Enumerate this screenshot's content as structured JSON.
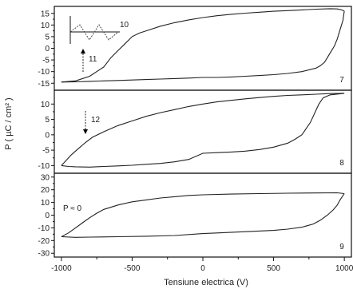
{
  "chart_data": [
    {
      "type": "line",
      "panel_label": "7",
      "xlim": [
        -1050,
        1050
      ],
      "ylim": [
        -18,
        18
      ],
      "yticks": [
        15,
        10,
        5,
        0,
        -5,
        -10,
        -15
      ],
      "annotations": [
        {
          "text": "10",
          "kind": "waveform-inset"
        },
        {
          "text": "11",
          "kind": "arrow-up"
        }
      ],
      "series": [
        {
          "upper": [
            [
              -1000,
              -14.5
            ],
            [
              -900,
              -14
            ],
            [
              -800,
              -12
            ],
            [
              -700,
              -8
            ],
            [
              -650,
              -4
            ],
            [
              -600,
              -1
            ],
            [
              -550,
              2
            ],
            [
              -500,
              5
            ],
            [
              -450,
              6.5
            ],
            [
              -400,
              7.5
            ],
            [
              -300,
              9.5
            ],
            [
              -200,
              11
            ],
            [
              -100,
              12.2
            ],
            [
              0,
              13.2
            ],
            [
              100,
              14
            ],
            [
              200,
              14.6
            ],
            [
              300,
              15.1
            ],
            [
              400,
              15.5
            ],
            [
              500,
              15.9
            ],
            [
              600,
              16.2
            ],
            [
              700,
              16.5
            ],
            [
              800,
              16.8
            ],
            [
              900,
              17
            ],
            [
              950,
              16.9
            ],
            [
              980,
              16.5
            ],
            [
              1000,
              16
            ]
          ],
          "lower": [
            [
              1000,
              16
            ],
            [
              990,
              12
            ],
            [
              970,
              8
            ],
            [
              950,
              4
            ],
            [
              930,
              1
            ],
            [
              900,
              -2
            ],
            [
              880,
              -4
            ],
            [
              860,
              -6
            ],
            [
              830,
              -7.5
            ],
            [
              800,
              -8.5
            ],
            [
              700,
              -10
            ],
            [
              600,
              -10.8
            ],
            [
              500,
              -11.3
            ],
            [
              400,
              -11.7
            ],
            [
              300,
              -12
            ],
            [
              200,
              -12.3
            ],
            [
              100,
              -12.5
            ],
            [
              0,
              -12.5
            ],
            [
              -100,
              -12.8
            ],
            [
              -200,
              -13
            ],
            [
              -300,
              -13.2
            ],
            [
              -400,
              -13.4
            ],
            [
              -500,
              -13.6
            ],
            [
              -600,
              -13.8
            ],
            [
              -700,
              -14
            ],
            [
              -800,
              -14.2
            ],
            [
              -900,
              -14.4
            ],
            [
              -1000,
              -14.5
            ]
          ]
        }
      ]
    },
    {
      "type": "line",
      "panel_label": "8",
      "xlim": [
        -1050,
        1050
      ],
      "ylim": [
        -12.5,
        14.5
      ],
      "yticks": [
        10,
        5,
        0,
        -5,
        -10
      ],
      "annotations": [
        {
          "text": "12",
          "kind": "arrow-down"
        }
      ],
      "series": [
        {
          "upper": [
            [
              -1000,
              -10
            ],
            [
              -970,
              -8.5
            ],
            [
              -930,
              -6.5
            ],
            [
              -880,
              -4.5
            ],
            [
              -830,
              -2.5
            ],
            [
              -780,
              -0.8
            ],
            [
              -700,
              1
            ],
            [
              -600,
              3
            ],
            [
              -500,
              4.5
            ],
            [
              -400,
              6
            ],
            [
              -300,
              7.2
            ],
            [
              -200,
              8.2
            ],
            [
              -100,
              9.2
            ],
            [
              0,
              10
            ],
            [
              100,
              10.7
            ],
            [
              200,
              11.2
            ],
            [
              300,
              11.7
            ],
            [
              400,
              12.1
            ],
            [
              500,
              12.5
            ],
            [
              600,
              12.8
            ],
            [
              700,
              13
            ],
            [
              800,
              13.2
            ],
            [
              900,
              13.4
            ],
            [
              1000,
              13.5
            ]
          ],
          "lower": [
            [
              1000,
              13.5
            ],
            [
              900,
              13
            ],
            [
              850,
              12
            ],
            [
              820,
              10
            ],
            [
              800,
              8
            ],
            [
              780,
              6
            ],
            [
              760,
              4
            ],
            [
              730,
              2
            ],
            [
              700,
              0
            ],
            [
              650,
              -1.5
            ],
            [
              600,
              -2.7
            ],
            [
              500,
              -4
            ],
            [
              400,
              -4.8
            ],
            [
              300,
              -5.3
            ],
            [
              200,
              -5.6
            ],
            [
              100,
              -5.8
            ],
            [
              0,
              -6
            ],
            [
              -100,
              -8
            ],
            [
              -200,
              -8.8
            ],
            [
              -300,
              -9.3
            ],
            [
              -400,
              -9.6
            ],
            [
              -500,
              -9.9
            ],
            [
              -600,
              -10.1
            ],
            [
              -700,
              -10.3
            ],
            [
              -800,
              -10.5
            ],
            [
              -900,
              -10.4
            ],
            [
              -950,
              -10.3
            ],
            [
              -1000,
              -10
            ]
          ]
        }
      ]
    },
    {
      "type": "line",
      "panel_label": "9",
      "xlim": [
        -1050,
        1050
      ],
      "ylim": [
        -33,
        33
      ],
      "yticks": [
        30,
        20,
        10,
        0,
        -10,
        -20,
        -30
      ],
      "annotations": [
        {
          "text": "P ≈ 0",
          "kind": "text"
        }
      ],
      "series": [
        {
          "upper": [
            [
              -1000,
              -17
            ],
            [
              -950,
              -14
            ],
            [
              -900,
              -10
            ],
            [
              -850,
              -6
            ],
            [
              -800,
              -2
            ],
            [
              -750,
              1.5
            ],
            [
              -700,
              4.5
            ],
            [
              -600,
              8
            ],
            [
              -500,
              10.5
            ],
            [
              -400,
              12
            ],
            [
              -300,
              13.5
            ],
            [
              -200,
              14.5
            ],
            [
              -100,
              15.5
            ],
            [
              0,
              16
            ],
            [
              200,
              16.6
            ],
            [
              400,
              17
            ],
            [
              600,
              17.3
            ],
            [
              800,
              17.5
            ],
            [
              950,
              17.6
            ],
            [
              1000,
              17
            ]
          ],
          "lower": [
            [
              1000,
              17
            ],
            [
              970,
              12
            ],
            [
              950,
              8
            ],
            [
              920,
              4
            ],
            [
              880,
              0
            ],
            [
              830,
              -4
            ],
            [
              780,
              -7
            ],
            [
              700,
              -9.5
            ],
            [
              600,
              -11
            ],
            [
              500,
              -12
            ],
            [
              300,
              -13
            ],
            [
              100,
              -14
            ],
            [
              0,
              -14.5
            ],
            [
              -200,
              -16
            ],
            [
              -400,
              -16.6
            ],
            [
              -600,
              -17
            ],
            [
              -800,
              -17.3
            ],
            [
              -900,
              -17.5
            ],
            [
              -1000,
              -17
            ]
          ]
        }
      ]
    }
  ],
  "xticks": [
    -1000,
    -500,
    0,
    500,
    1000
  ],
  "xticklabels": [
    "-1000",
    "-500",
    "0",
    "500",
    "1000"
  ],
  "xlabel": "Tensiune electrica (V)",
  "ylabel": "P ( µC / cm² )"
}
